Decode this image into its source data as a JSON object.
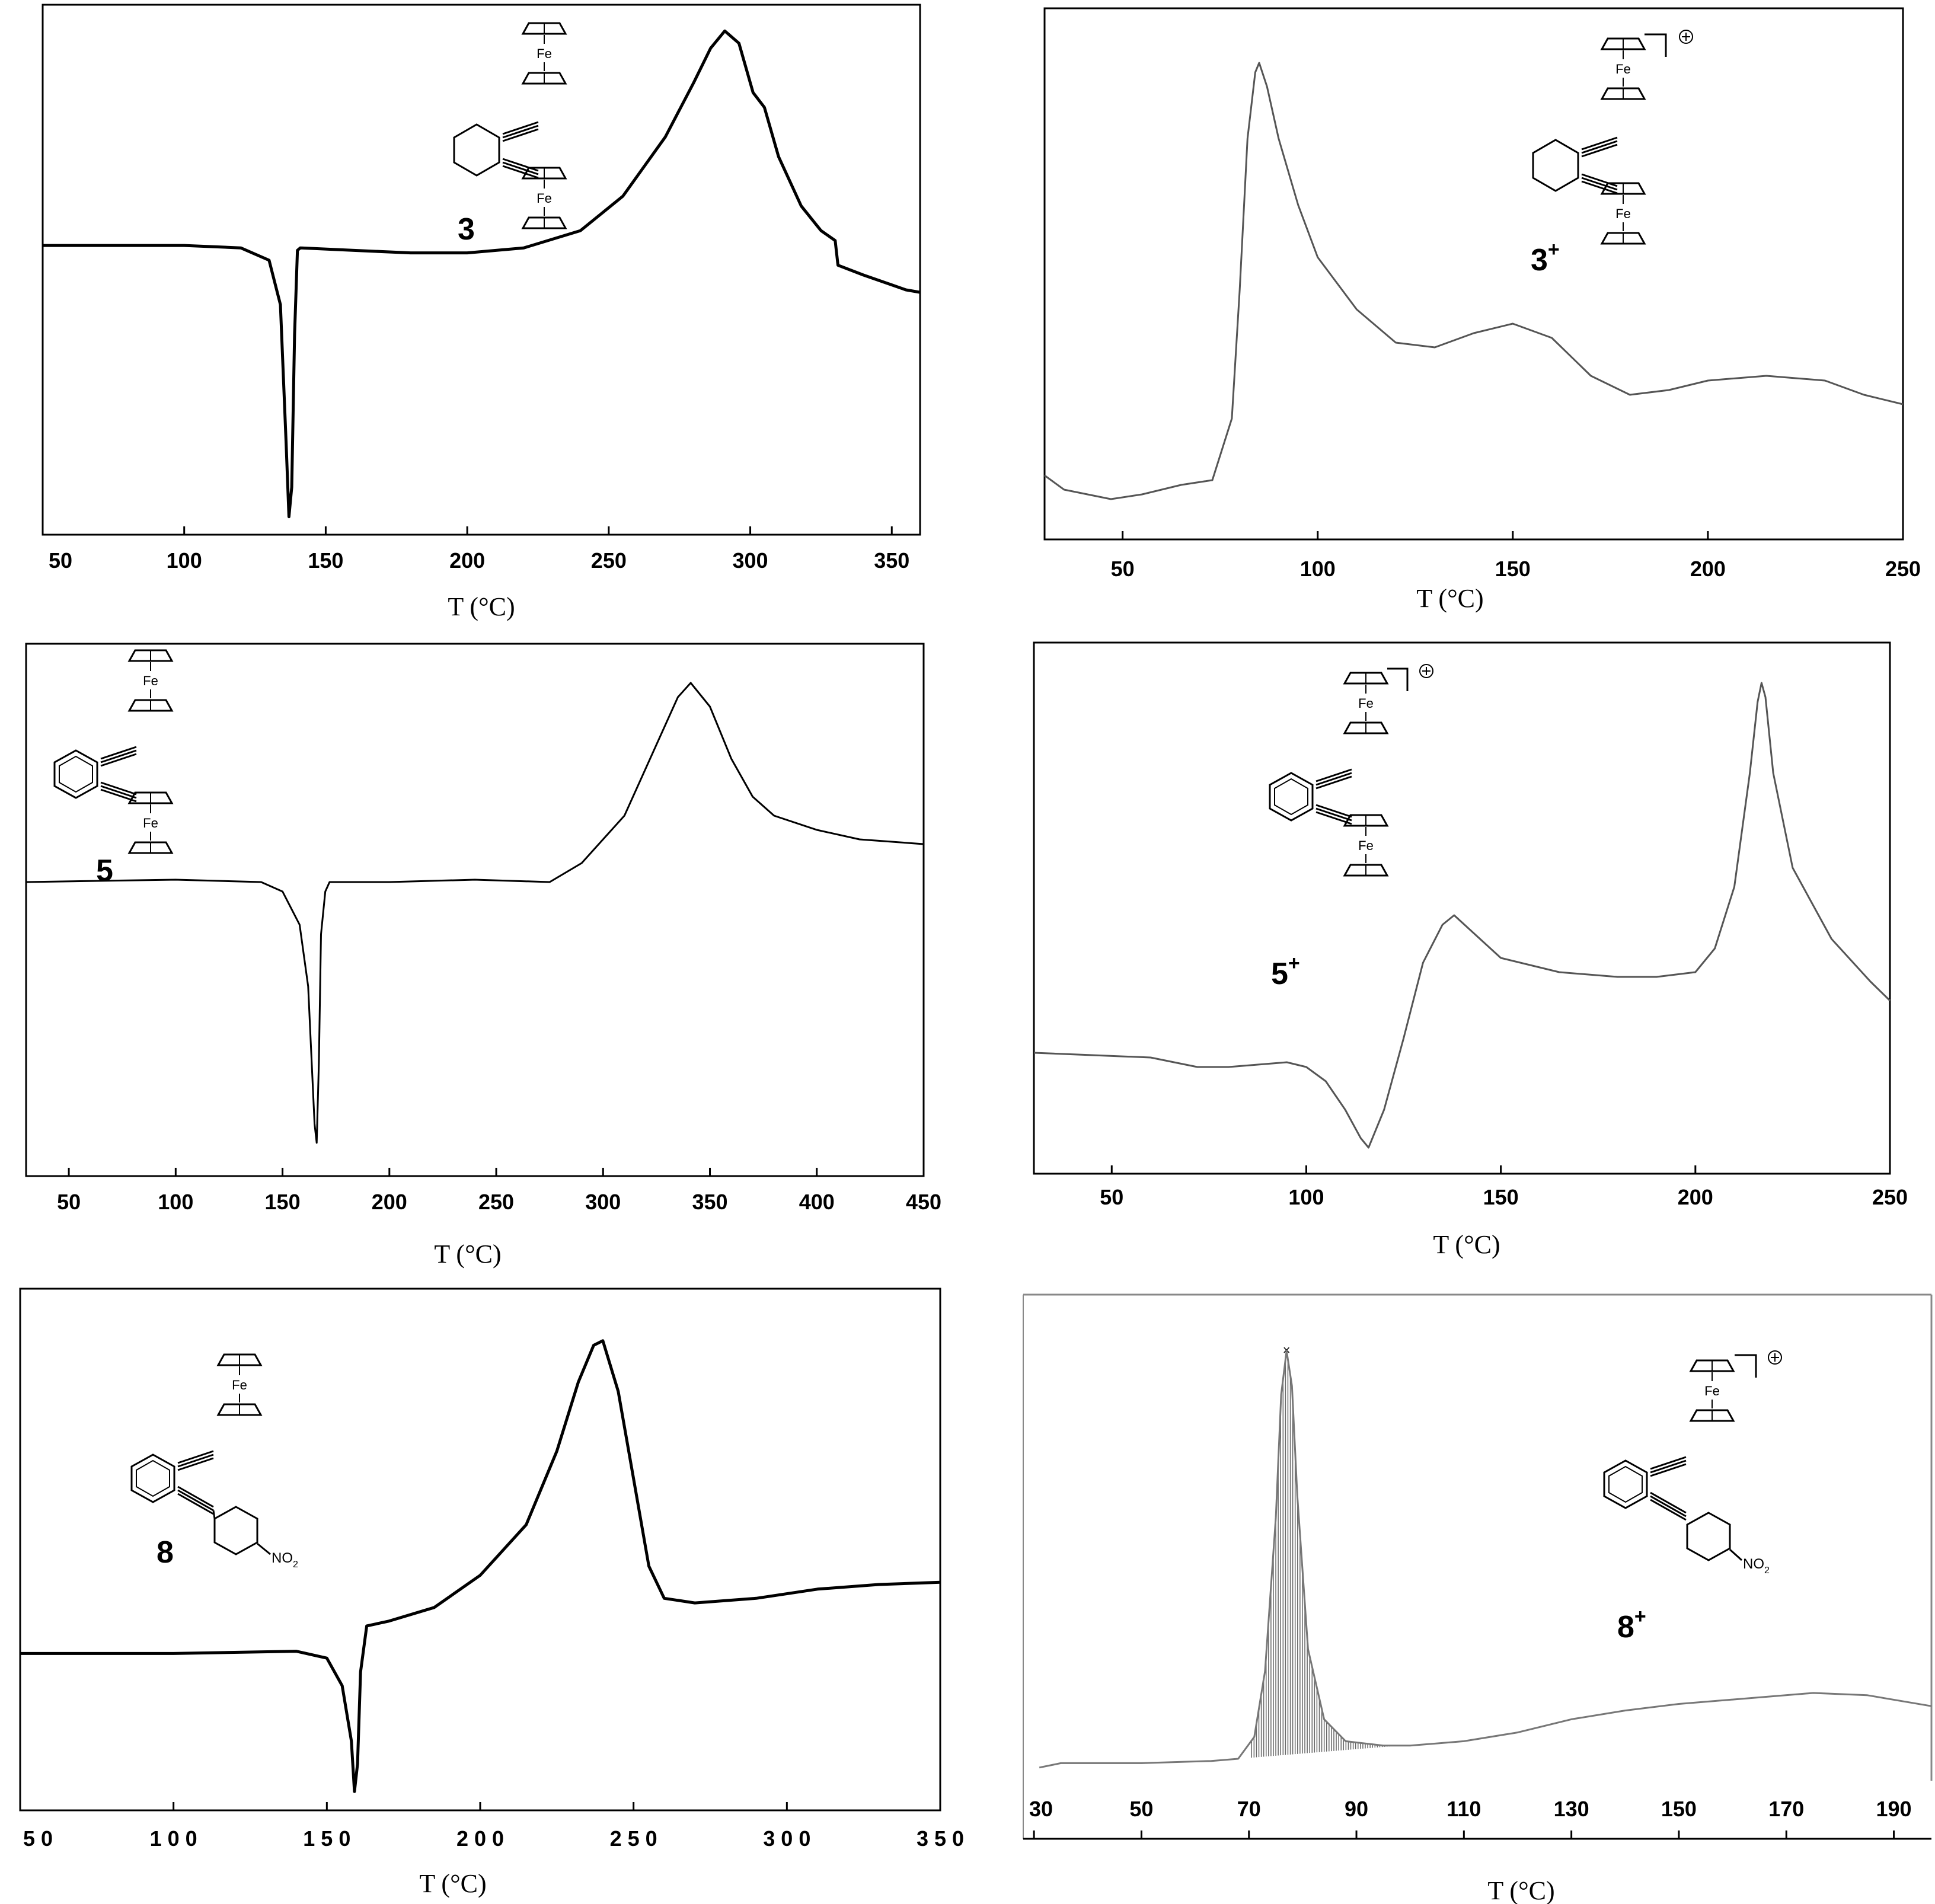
{
  "charts": [
    {
      "id": "p3",
      "xlabel": "T (°C)",
      "xlim": [
        50,
        360
      ],
      "ticks": [
        50,
        100,
        150,
        200,
        250,
        300,
        350
      ],
      "tick_labels": [
        "50",
        "100",
        "150",
        "200",
        "250",
        "300",
        "350"
      ],
      "compound": {
        "bold": "3",
        "sup": ""
      },
      "structure": "3",
      "stroke_width": 5,
      "points": [
        [
          50,
          0.44
        ],
        [
          100,
          0.44
        ],
        [
          120,
          0.445
        ],
        [
          130,
          0.47
        ],
        [
          134,
          0.56
        ],
        [
          136,
          0.84
        ],
        [
          137,
          0.99
        ],
        [
          138,
          0.93
        ],
        [
          139,
          0.62
        ],
        [
          140,
          0.45
        ],
        [
          141,
          0.445
        ],
        [
          160,
          0.45
        ],
        [
          180,
          0.455
        ],
        [
          200,
          0.455
        ],
        [
          220,
          0.445
        ],
        [
          240,
          0.41
        ],
        [
          255,
          0.34
        ],
        [
          270,
          0.22
        ],
        [
          280,
          0.11
        ],
        [
          286,
          0.04
        ],
        [
          291,
          0.005
        ],
        [
          296,
          0.03
        ],
        [
          301,
          0.13
        ],
        [
          305,
          0.16
        ],
        [
          310,
          0.26
        ],
        [
          318,
          0.36
        ],
        [
          325,
          0.41
        ],
        [
          330,
          0.43
        ],
        [
          331,
          0.48
        ],
        [
          340,
          0.5
        ],
        [
          350,
          0.52
        ],
        [
          355,
          0.53
        ],
        [
          360,
          0.535
        ]
      ]
    },
    {
      "id": "p3plus",
      "xlabel": "T (°C)",
      "xlim": [
        30,
        250
      ],
      "ticks": [
        50,
        100,
        150,
        200,
        250
      ],
      "tick_labels": [
        "50",
        "100",
        "150",
        "200",
        "250"
      ],
      "compound": {
        "bold": "3",
        "sup": "+"
      },
      "structure": "3plus",
      "stroke_width": 3,
      "points": [
        [
          30,
          0.91
        ],
        [
          35,
          0.94
        ],
        [
          47,
          0.96
        ],
        [
          55,
          0.95
        ],
        [
          65,
          0.93
        ],
        [
          73,
          0.92
        ],
        [
          78,
          0.79
        ],
        [
          80,
          0.52
        ],
        [
          82,
          0.2
        ],
        [
          84,
          0.06
        ],
        [
          85,
          0.04
        ],
        [
          87,
          0.09
        ],
        [
          90,
          0.2
        ],
        [
          95,
          0.34
        ],
        [
          100,
          0.45
        ],
        [
          110,
          0.56
        ],
        [
          120,
          0.63
        ],
        [
          130,
          0.64
        ],
        [
          140,
          0.61
        ],
        [
          150,
          0.59
        ],
        [
          160,
          0.62
        ],
        [
          170,
          0.7
        ],
        [
          180,
          0.74
        ],
        [
          190,
          0.73
        ],
        [
          200,
          0.71
        ],
        [
          215,
          0.7
        ],
        [
          230,
          0.71
        ],
        [
          240,
          0.74
        ],
        [
          250,
          0.76
        ]
      ]
    },
    {
      "id": "p5",
      "xlabel": "T (°C)",
      "xlim": [
        30,
        450
      ],
      "ticks": [
        50,
        100,
        150,
        200,
        250,
        300,
        350,
        400,
        450
      ],
      "tick_labels": [
        "50",
        "100",
        "150",
        "200",
        "250",
        "300",
        "350",
        "400",
        "450"
      ],
      "compound": {
        "bold": "5",
        "sup": ""
      },
      "structure": "5",
      "stroke_width": 3,
      "points": [
        [
          30,
          0.44
        ],
        [
          100,
          0.435
        ],
        [
          140,
          0.44
        ],
        [
          150,
          0.46
        ],
        [
          158,
          0.53
        ],
        [
          162,
          0.66
        ],
        [
          165,
          0.95
        ],
        [
          166,
          0.99
        ],
        [
          167,
          0.82
        ],
        [
          168,
          0.55
        ],
        [
          170,
          0.46
        ],
        [
          172,
          0.44
        ],
        [
          200,
          0.44
        ],
        [
          240,
          0.435
        ],
        [
          275,
          0.44
        ],
        [
          290,
          0.4
        ],
        [
          310,
          0.3
        ],
        [
          325,
          0.15
        ],
        [
          335,
          0.05
        ],
        [
          341,
          0.02
        ],
        [
          350,
          0.07
        ],
        [
          360,
          0.18
        ],
        [
          370,
          0.26
        ],
        [
          380,
          0.3
        ],
        [
          400,
          0.33
        ],
        [
          420,
          0.35
        ],
        [
          450,
          0.36
        ]
      ]
    },
    {
      "id": "p5plus",
      "xlabel": "T (°C)",
      "xlim": [
        30,
        250
      ],
      "ticks": [
        50,
        100,
        150,
        200,
        250
      ],
      "tick_labels": [
        "50",
        "100",
        "150",
        "200",
        "250"
      ],
      "compound": {
        "bold": "5",
        "sup": "+"
      },
      "structure": "5plus",
      "stroke_width": 3,
      "points": [
        [
          30,
          0.79
        ],
        [
          60,
          0.8
        ],
        [
          72,
          0.82
        ],
        [
          80,
          0.82
        ],
        [
          95,
          0.81
        ],
        [
          100,
          0.82
        ],
        [
          105,
          0.85
        ],
        [
          110,
          0.91
        ],
        [
          114,
          0.97
        ],
        [
          116,
          0.99
        ],
        [
          120,
          0.91
        ],
        [
          125,
          0.76
        ],
        [
          130,
          0.6
        ],
        [
          135,
          0.52
        ],
        [
          138,
          0.5
        ],
        [
          142,
          0.53
        ],
        [
          150,
          0.59
        ],
        [
          165,
          0.62
        ],
        [
          180,
          0.63
        ],
        [
          190,
          0.63
        ],
        [
          200,
          0.62
        ],
        [
          205,
          0.57
        ],
        [
          210,
          0.44
        ],
        [
          214,
          0.2
        ],
        [
          216,
          0.05
        ],
        [
          217,
          0.01
        ],
        [
          218,
          0.04
        ],
        [
          220,
          0.2
        ],
        [
          225,
          0.4
        ],
        [
          235,
          0.55
        ],
        [
          245,
          0.64
        ],
        [
          250,
          0.68
        ]
      ]
    },
    {
      "id": "p8",
      "xlabel": "T (°C)",
      "xlim": [
        50,
        350
      ],
      "ticks": [
        50,
        100,
        150,
        200,
        250,
        300,
        350
      ],
      "tick_labels": [
        "5 0",
        "1 0 0",
        "1 5 0",
        "2 0 0",
        "2 5 0",
        "3 0 0",
        "3 5 0"
      ],
      "compound": {
        "bold": "8",
        "sup": ""
      },
      "structure": "8",
      "stroke_width": 5,
      "points": [
        [
          50,
          0.69
        ],
        [
          100,
          0.69
        ],
        [
          140,
          0.685
        ],
        [
          150,
          0.7
        ],
        [
          155,
          0.76
        ],
        [
          158,
          0.88
        ],
        [
          159,
          0.99
        ],
        [
          160,
          0.93
        ],
        [
          161,
          0.73
        ],
        [
          163,
          0.63
        ],
        [
          170,
          0.62
        ],
        [
          185,
          0.59
        ],
        [
          200,
          0.52
        ],
        [
          215,
          0.41
        ],
        [
          225,
          0.25
        ],
        [
          232,
          0.1
        ],
        [
          237,
          0.02
        ],
        [
          240,
          0.01
        ],
        [
          245,
          0.12
        ],
        [
          250,
          0.31
        ],
        [
          255,
          0.5
        ],
        [
          260,
          0.57
        ],
        [
          270,
          0.58
        ],
        [
          290,
          0.57
        ],
        [
          310,
          0.55
        ],
        [
          330,
          0.54
        ],
        [
          350,
          0.535
        ]
      ]
    },
    {
      "id": "p8plus",
      "xlabel": "T (°C)",
      "xlim": [
        28,
        197
      ],
      "ticks": [
        30,
        50,
        70,
        90,
        110,
        130,
        150,
        170,
        190
      ],
      "tick_labels": [
        "30",
        "50",
        "70",
        "90",
        "110",
        "130",
        "150",
        "170",
        "190"
      ],
      "compound": {
        "bold": "8",
        "sup": "+"
      },
      "structure": "8plus",
      "stroke_width": 3,
      "points": [
        [
          31,
          0.97
        ],
        [
          35,
          0.96
        ],
        [
          50,
          0.96
        ],
        [
          63,
          0.955
        ],
        [
          68,
          0.95
        ],
        [
          71,
          0.9
        ],
        [
          73,
          0.75
        ],
        [
          75,
          0.4
        ],
        [
          76,
          0.12
        ],
        [
          77,
          0.02
        ],
        [
          78,
          0.1
        ],
        [
          79,
          0.35
        ],
        [
          81,
          0.7
        ],
        [
          84,
          0.86
        ],
        [
          88,
          0.91
        ],
        [
          95,
          0.92
        ],
        [
          100,
          0.92
        ],
        [
          110,
          0.91
        ],
        [
          120,
          0.89
        ],
        [
          130,
          0.86
        ],
        [
          140,
          0.84
        ],
        [
          150,
          0.825
        ],
        [
          160,
          0.815
        ],
        [
          175,
          0.8
        ],
        [
          185,
          0.805
        ],
        [
          197,
          0.83
        ]
      ]
    }
  ]
}
